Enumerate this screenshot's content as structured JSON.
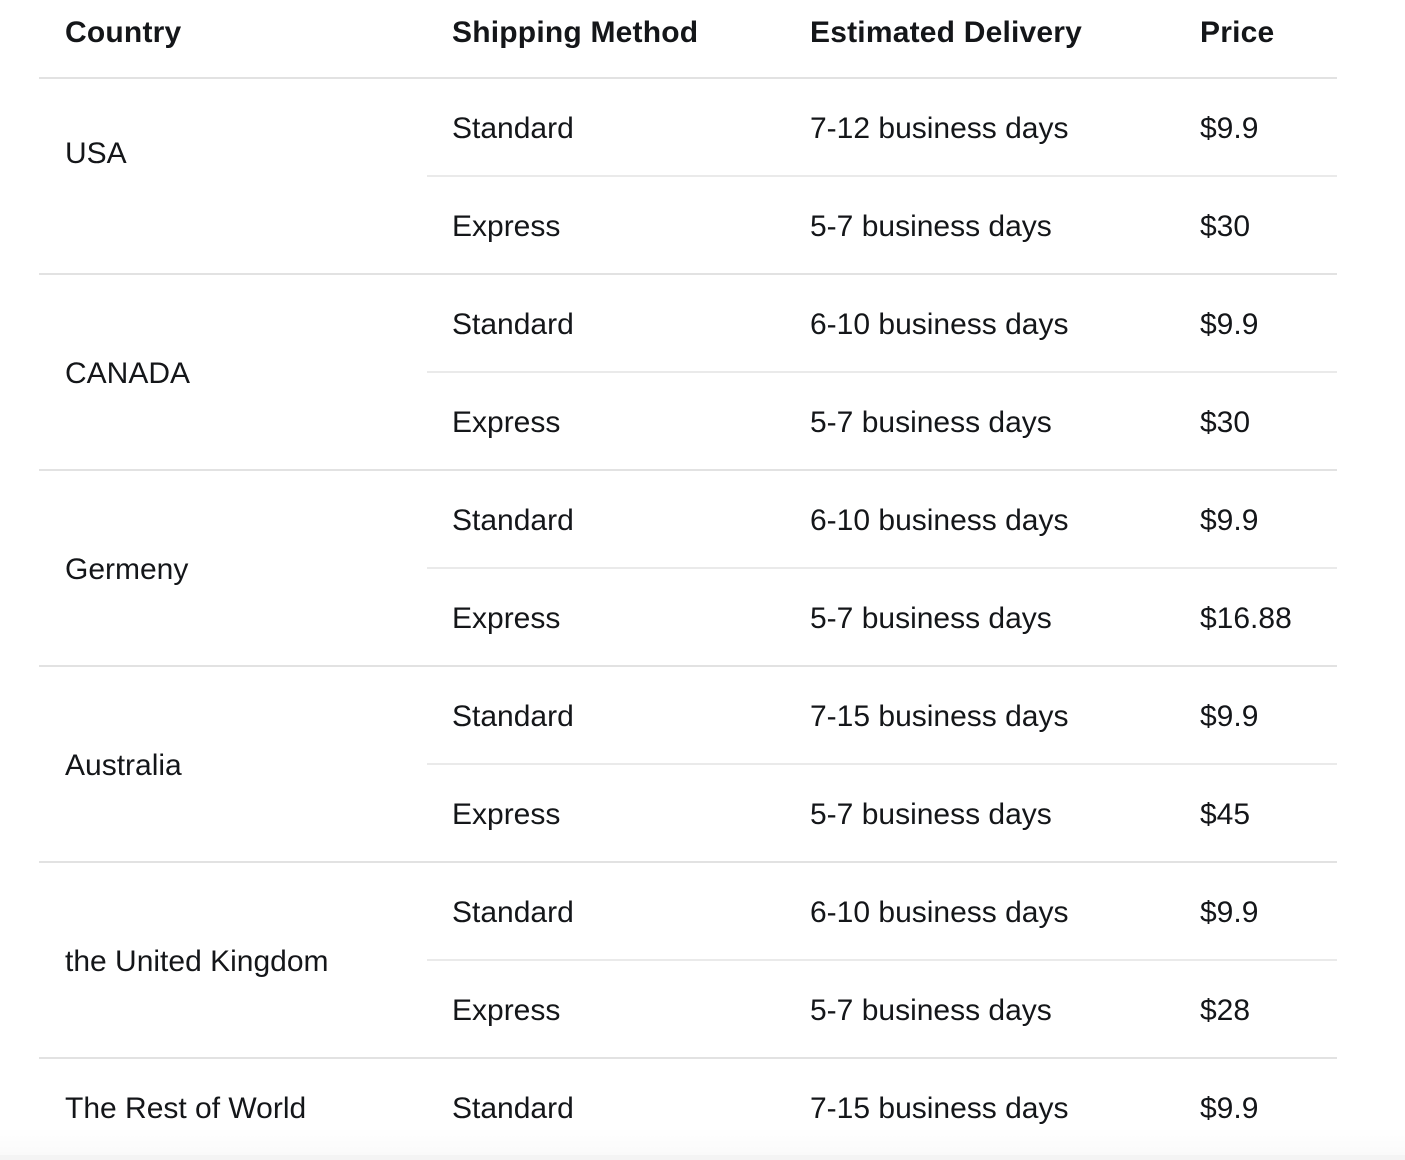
{
  "table": {
    "columns": [
      "Country",
      "Shipping Method",
      "Estimated Delivery",
      "Price"
    ],
    "groups": [
      {
        "country": "USA",
        "rows": [
          {
            "method": "Standard",
            "delivery": "7-12 business days",
            "price": "$9.9"
          },
          {
            "method": "Express",
            "delivery": "5-7 business days",
            "price": "$30"
          }
        ]
      },
      {
        "country": "CANADA",
        "rows": [
          {
            "method": "Standard",
            "delivery": "6-10 business days",
            "price": "$9.9"
          },
          {
            "method": "Express",
            "delivery": "5-7 business days",
            "price": "$30"
          }
        ]
      },
      {
        "country": "Germeny",
        "rows": [
          {
            "method": "Standard",
            "delivery": "6-10 business days",
            "price": "$9.9"
          },
          {
            "method": "Express",
            "delivery": "5-7 business days",
            "price": "$16.88"
          }
        ]
      },
      {
        "country": "Australia",
        "rows": [
          {
            "method": "Standard",
            "delivery": "7-15 business days",
            "price": "$9.9"
          },
          {
            "method": "Express",
            "delivery": "5-7 business days",
            "price": "$45"
          }
        ]
      },
      {
        "country": "the United Kingdom",
        "rows": [
          {
            "method": "Standard",
            "delivery": "6-10 business days",
            "price": "$9.9"
          },
          {
            "method": "Express",
            "delivery": "5-7 business days",
            "price": "$28"
          }
        ]
      },
      {
        "country": "The Rest of World",
        "rows": [
          {
            "method": "Standard",
            "delivery": "7-15 business days",
            "price": "$9.9"
          }
        ]
      }
    ],
    "colors": {
      "background": "#ffffff",
      "text": "#141619",
      "divider": "#e2e2e2",
      "sub_divider": "#eaeaea",
      "footer_strip": "#f4f4f4"
    }
  }
}
